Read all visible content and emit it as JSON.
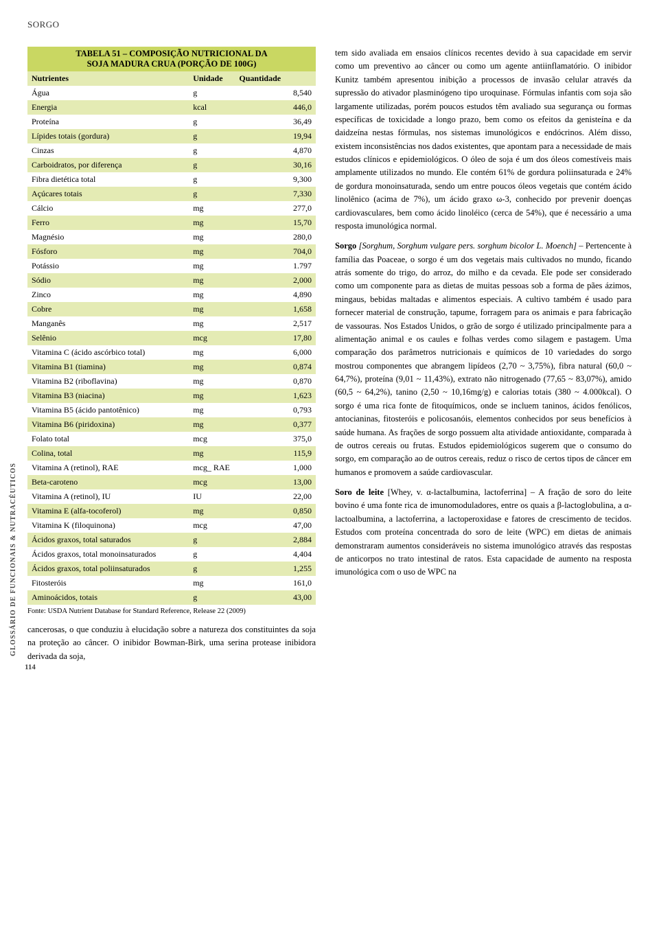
{
  "header_word": "SORGO",
  "vertical_label": "GLOSSÁRIO DE FUNCIONAIS & NUTRACÊUTICOS",
  "page_number": "114",
  "table": {
    "title_l1": "TABELA 51 – COMPOSIÇÃO NUTRICIONAL DA",
    "title_l2": "SOJA MADURA CRUA (PORÇÃO DE 100G)",
    "columns": [
      "Nutrientes",
      "Unidade",
      "Quantidade"
    ],
    "rows": [
      [
        "Água",
        "g",
        "8,540"
      ],
      [
        "Energia",
        "kcal",
        "446,0"
      ],
      [
        "Proteína",
        "g",
        "36,49"
      ],
      [
        "Lípides totais (gordura)",
        "g",
        "19,94"
      ],
      [
        "Cinzas",
        "g",
        "4,870"
      ],
      [
        "Carboidratos, por diferença",
        "g",
        "30,16"
      ],
      [
        "Fibra dietética total",
        "g",
        "9,300"
      ],
      [
        "Açúcares totais",
        "g",
        "7,330"
      ],
      [
        "Cálcio",
        "mg",
        "277,0"
      ],
      [
        "Ferro",
        "mg",
        "15,70"
      ],
      [
        "Magnésio",
        "mg",
        "280,0"
      ],
      [
        "Fósforo",
        "mg",
        "704,0"
      ],
      [
        "Potássio",
        "mg",
        "1.797"
      ],
      [
        "Sódio",
        "mg",
        "2,000"
      ],
      [
        "Zinco",
        "mg",
        "4,890"
      ],
      [
        "Cobre",
        "mg",
        "1,658"
      ],
      [
        "Manganês",
        "mg",
        "2,517"
      ],
      [
        "Selênio",
        "mcg",
        "17,80"
      ],
      [
        "Vitamina C (ácido ascórbico total)",
        "mg",
        "6,000"
      ],
      [
        "Vitamina B1 (tiamina)",
        "mg",
        "0,874"
      ],
      [
        "Vitamina B2 (riboflavina)",
        "mg",
        "0,870"
      ],
      [
        "Vitamina B3 (niacina)",
        "mg",
        "1,623"
      ],
      [
        "Vitamina B5 (ácido pantotênico)",
        "mg",
        "0,793"
      ],
      [
        "Vitamina B6 (piridoxina)",
        "mg",
        "0,377"
      ],
      [
        "Folato total",
        "mcg",
        "375,0"
      ],
      [
        "Colina, total",
        "mg",
        "115,9"
      ],
      [
        "Vitamina A (retinol), RAE",
        "mcg_ RAE",
        "1,000"
      ],
      [
        "Beta-caroteno",
        "mcg",
        "13,00"
      ],
      [
        "Vitamina A (retinol), IU",
        "IU",
        "22,00"
      ],
      [
        "Vitamina E (alfa-tocoferol)",
        "mg",
        "0,850"
      ],
      [
        "Vitamina K (filoquinona)",
        "mcg",
        "47,00"
      ],
      [
        "Ácidos graxos, total saturados",
        "g",
        "2,884"
      ],
      [
        "Ácidos graxos, total monoinsaturados",
        "g",
        "4,404"
      ],
      [
        "Ácidos graxos, total poliinsaturados",
        "g",
        "1,255"
      ],
      [
        "Fitosteróis",
        "mg",
        "161,0"
      ],
      [
        "Aminoácidos, totais",
        "g",
        "43,00"
      ]
    ],
    "row_alt_color": "#e4ebb4",
    "row_base_color": "#ffffff",
    "title_bg": "#c9d762",
    "source": "Fonte: USDA Nutrient Database for Standard Reference, Release 22 (2009)"
  },
  "left_after": "cancerosas, o que conduziu à elucidação sobre a natureza dos constituintes da soja na proteção ao câncer. O inibidor Bowman-Birk, uma serina protease inibidora derivada da soja,",
  "right_p1": "tem sido avaliada em ensaios clínicos recentes devido à sua capacidade em servir como um preventivo ao câncer ou como um agente antiinflamatório. O inibidor Kunitz também apresentou inibição a processos de invasão celular através da supressão do ativador plasminógeno tipo uroquinase. Fórmulas infantis com soja são largamente utilizadas, porém poucos estudos têm avaliado sua segurança ou formas específicas de toxicidade a longo prazo, bem como os efeitos da genisteína e da daidzeína nestas fórmulas, nos sistemas imunológicos e endócrinos. Além disso, existem inconsistências nos dados existentes, que apontam para a necessidade de mais estudos clínicos e epidemiológicos. O óleo de soja é um dos óleos comestíveis mais amplamente utilizados no mundo. Ele contém 61% de gordura poliinsaturada e 24% de gordura monoinsaturada, sendo um entre poucos óleos vegetais que contém ácido linolênico (acima de 7%), um ácido graxo ω-3, conhecido por prevenir doenças cardiovasculares, bem como ácido linoléico (cerca de 54%), que é necessário a uma resposta imunológica normal.",
  "right_p2_term": "Sorgo",
  "right_p2_lat": "[Sorghum, Sorghum vulgare pers. sorghum bicolor L. Moench]",
  "right_p2_body": " – Pertencente à família das Poaceae, o sorgo é um dos vegetais mais cultivados no mundo, ficando atrás somente do trigo, do arroz, do milho e da cevada. Ele pode ser considerado como um componente para as dietas de muitas pessoas sob a forma de pães ázimos, mingaus, bebidas maltadas e alimentos especiais. A cultivo também é usado para fornecer material de construção, tapume, forragem para os animais e para fabricação de vassouras. Nos Estados Unidos, o grão de sorgo é utilizado principalmente para a alimentação animal e os caules e folhas verdes como silagem e pastagem. Uma comparação dos parâmetros nutricionais e químicos de 10 variedades do sorgo mostrou componentes que abrangem lipídeos (2,70 ~ 3,75%), fibra natural (60,0 ~ 64,7%), proteína (9,01 ~ 11,43%), extrato não nitrogenado (77,65 ~ 83,07%), amido (60,5 ~ 64,2%), tanino (2,50 ~ 10,16mg/g) e calorias totais (380 ~ 4.000kcal). O sorgo é uma rica fonte de fitoquímicos, onde se incluem taninos, ácidos fenólicos, antocianinas, fitosteróis e policosanóis, elementos conhecidos por seus benefícios à saúde humana. As frações de sorgo possuem alta atividade antioxidante, comparada à de outros cereais ou frutas. Estudos epidemiológicos sugerem que o consumo do sorgo, em comparação ao de outros cereais, reduz o risco de certos tipos de câncer em humanos e promovem a saúde cardiovascular.",
  "right_p3_term": "Soro de leite",
  "right_p3_body": " [Whey, v. α-lactalbumina, lactoferrina] – A fração de soro do leite bovino é uma fonte rica de imunomoduladores, entre os quais a β-lactoglobulina, a α-lactoalbumina, a lactoferrina, a lactoperoxidase e fatores de crescimento de tecidos. Estudos com proteína concentrada do soro de leite (WPC) em dietas de animais demonstraram aumentos consideráveis no sistema imunológico através das respostas de anticorpos no trato intestinal de ratos. Esta capacidade de aumento na resposta imunológica com o uso de WPC na"
}
